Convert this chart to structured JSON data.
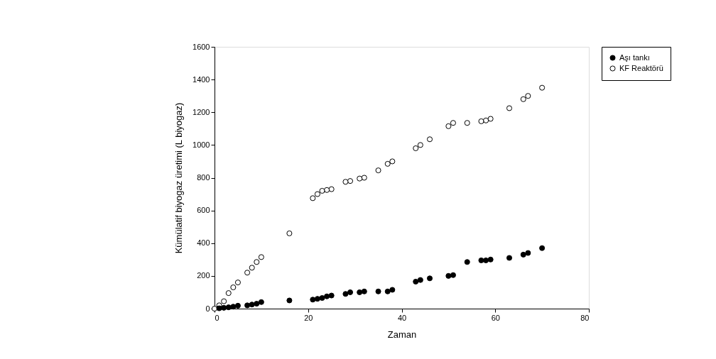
{
  "chart_data": {
    "type": "scatter",
    "xlabel": "Zaman",
    "ylabel": "Kümülatif biyogaz üretimi (L biyogaz)",
    "xlim": [
      0,
      80
    ],
    "xticks": [
      0,
      20,
      40,
      60,
      80
    ],
    "ylim": [
      0,
      1600
    ],
    "yticks": [
      0,
      200,
      400,
      600,
      800,
      1000,
      1200,
      1400,
      1600
    ],
    "grid": false,
    "legend": "right",
    "marker": "circle",
    "x": [
      0,
      1,
      2,
      3,
      4,
      5,
      7,
      8,
      9,
      10,
      16,
      21,
      22,
      23,
      24,
      25,
      28,
      29,
      31,
      32,
      35,
      37,
      38,
      43,
      44,
      46,
      50,
      51,
      54,
      57,
      58,
      59,
      63,
      66,
      67,
      70
    ],
    "series": [
      {
        "name": "Aşı tankı",
        "color": "#000000",
        "values": [
          null,
          2,
          5,
          8,
          12,
          18,
          20,
          25,
          30,
          40,
          50,
          55,
          60,
          65,
          75,
          80,
          90,
          100,
          100,
          105,
          105,
          105,
          115,
          165,
          175,
          185,
          200,
          205,
          285,
          295,
          295,
          300,
          310,
          330,
          340,
          370
        ]
      },
      {
        "name": "KF Reaktörü",
        "color": "#ffffff",
        "values": [
          0,
          20,
          45,
          95,
          130,
          160,
          220,
          250,
          285,
          315,
          460,
          675,
          700,
          720,
          725,
          730,
          775,
          780,
          795,
          800,
          845,
          885,
          900,
          980,
          1000,
          1035,
          1115,
          1135,
          1135,
          1145,
          1150,
          1160,
          1225,
          1280,
          1300,
          1350
        ]
      }
    ]
  }
}
